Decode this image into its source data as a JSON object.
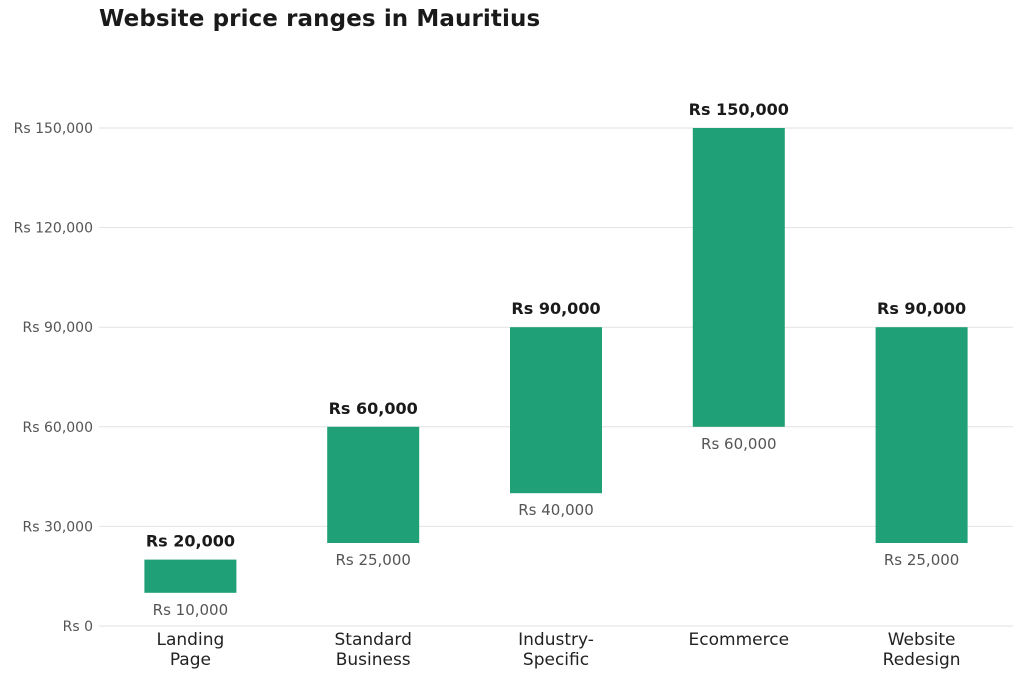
{
  "chart_data": {
    "type": "bar",
    "title": "Website price ranges in Mauritius",
    "xlabel": "",
    "ylabel": "",
    "categories": [
      [
        "Landing",
        "Page"
      ],
      [
        "Standard",
        "Business"
      ],
      [
        "Industry-",
        "Specific"
      ],
      [
        "Ecommerce"
      ],
      [
        "Website",
        "Redesign"
      ]
    ],
    "series": [
      {
        "low": 10000,
        "high": 20000,
        "low_label": "Rs 10,000",
        "high_label": "Rs 20,000"
      },
      {
        "low": 25000,
        "high": 60000,
        "low_label": "Rs 25,000",
        "high_label": "Rs 60,000"
      },
      {
        "low": 40000,
        "high": 90000,
        "low_label": "Rs 40,000",
        "high_label": "Rs 90,000"
      },
      {
        "low": 60000,
        "high": 150000,
        "low_label": "Rs 60,000",
        "high_label": "Rs 150,000"
      },
      {
        "low": 25000,
        "high": 90000,
        "low_label": "Rs 25,000",
        "high_label": "Rs 90,000"
      }
    ],
    "ylim": [
      0,
      150000
    ],
    "yticks": [
      0,
      30000,
      60000,
      90000,
      120000,
      150000
    ],
    "ytick_labels": [
      "Rs 0",
      "Rs 30,000",
      "Rs 60,000",
      "Rs 90,000",
      "Rs 120,000",
      "Rs 150,000"
    ],
    "grid": true,
    "legend": "none",
    "bar_color": "#1fa077",
    "grid_color": "#e2e2e2"
  }
}
